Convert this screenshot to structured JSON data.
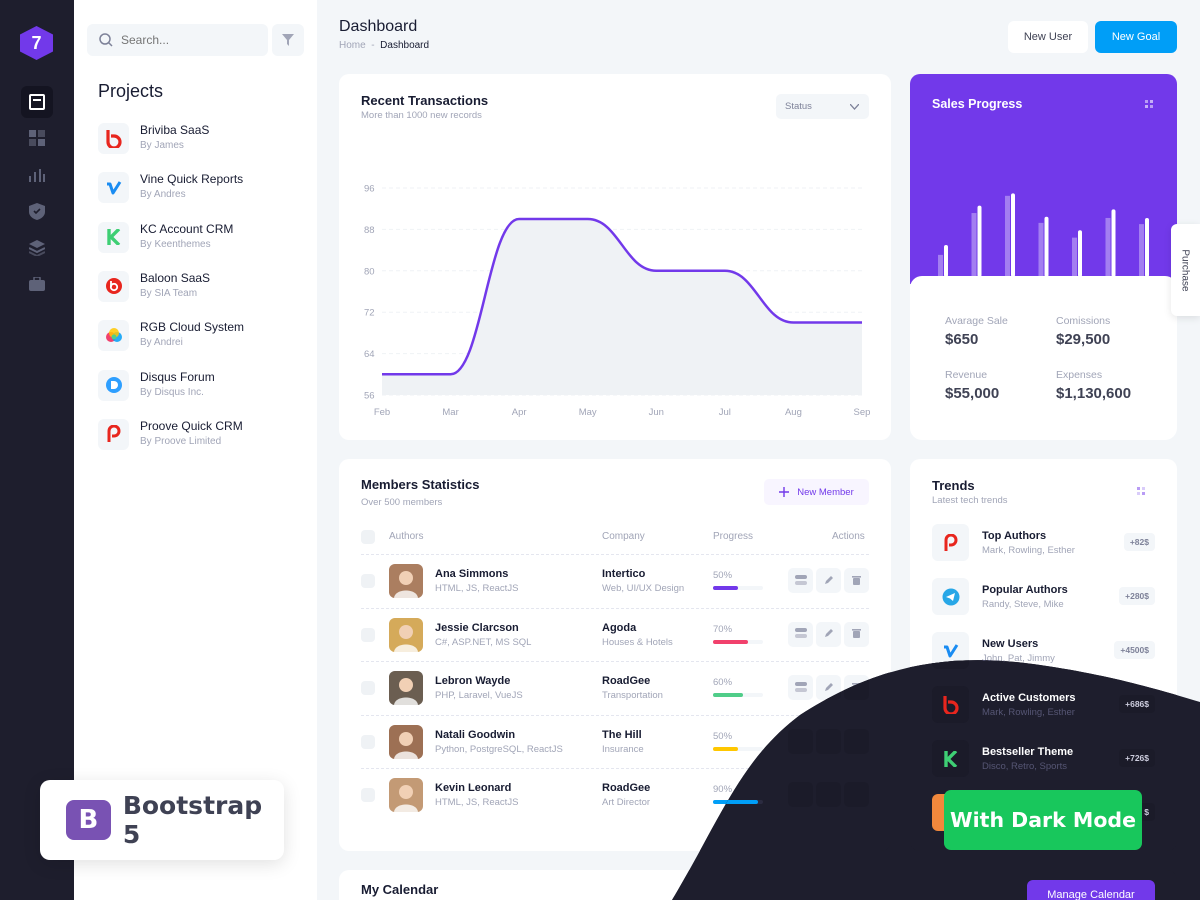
{
  "brand": {
    "logo_text": "7"
  },
  "sidebar": {
    "search_placeholder": "Search...",
    "projects_title": "Projects",
    "projects": [
      {
        "name": "Briviba SaaS",
        "by": "By James",
        "icon": "b-logo-icon",
        "color": "#e8261e"
      },
      {
        "name": "Vine Quick Reports",
        "by": "By Andres",
        "icon": "vimeo-icon",
        "color": "#1a8cf2"
      },
      {
        "name": "KC Account CRM",
        "by": "By Keenthemes",
        "icon": "k-logo-icon",
        "color": "#3ecf74"
      },
      {
        "name": "Baloon SaaS",
        "by": "By SIA Team",
        "icon": "beats-icon",
        "color": "#e8261e"
      },
      {
        "name": "RGB Cloud System",
        "by": "By Andrei",
        "icon": "rgb-cloud-icon",
        "color": "#f7b500"
      },
      {
        "name": "Disqus Forum",
        "by": "By Disqus Inc.",
        "icon": "disqus-icon",
        "color": "#2e9fff"
      },
      {
        "name": "Proove Quick CRM",
        "by": "By Proove Limited",
        "icon": "p-logo-icon",
        "color": "#e8261e"
      }
    ]
  },
  "bootstrap_badge": {
    "logo": "B",
    "text": "Bootstrap 5"
  },
  "header": {
    "title": "Dashboard",
    "breadcrumb_home": "Home",
    "breadcrumb_sep": "-",
    "breadcrumb_current": "Dashboard",
    "new_user": "New User",
    "new_goal": "New Goal"
  },
  "transactions": {
    "title": "Recent Transactions",
    "subtitle": "More than 1000 new records",
    "status_label": "Status"
  },
  "chart_data": {
    "type": "area",
    "categories": [
      "Feb",
      "Mar",
      "Apr",
      "May",
      "Jun",
      "Jul",
      "Aug",
      "Sep"
    ],
    "values": [
      60,
      60,
      90,
      90,
      80,
      80,
      70,
      70
    ],
    "y_ticks": [
      "56",
      "64",
      "72",
      "80",
      "88",
      "96"
    ],
    "ylim": [
      56,
      96
    ],
    "line_color": "#7239ea",
    "fill_color": "#eff2f5",
    "grid": true
  },
  "sales": {
    "title": "Sales Progress",
    "bars": [
      {
        "a": 0.18,
        "b": 0.26
      },
      {
        "a": 0.52,
        "b": 0.58
      },
      {
        "a": 0.66,
        "b": 0.68
      },
      {
        "a": 0.44,
        "b": 0.49
      },
      {
        "a": 0.32,
        "b": 0.38
      },
      {
        "a": 0.48,
        "b": 0.55
      },
      {
        "a": 0.43,
        "b": 0.48
      }
    ],
    "stats": [
      {
        "label": "Avarage Sale",
        "value": "$650"
      },
      {
        "label": "Comissions",
        "value": "$29,500"
      },
      {
        "label": "Revenue",
        "value": "$55,000"
      },
      {
        "label": "Expenses",
        "value": "$1,130,600"
      }
    ],
    "purchase_tab": "Purchase"
  },
  "members": {
    "title": "Members Statistics",
    "subtitle": "Over 500 members",
    "new_member": "New Member",
    "columns": [
      "Authors",
      "Company",
      "Progress",
      "Actions"
    ],
    "rows": [
      {
        "name": "Ana Simmons",
        "skills": "HTML, JS, ReactJS",
        "company": "Intertico",
        "company_sub": "Web, UI/UX Design",
        "progress": "50%",
        "fill": 0.5,
        "color": "#7239ea"
      },
      {
        "name": "Jessie Clarcson",
        "skills": "C#, ASP.NET, MS SQL",
        "company": "Agoda",
        "company_sub": "Houses & Hotels",
        "progress": "70%",
        "fill": 0.7,
        "color": "#f1416c"
      },
      {
        "name": "Lebron Wayde",
        "skills": "PHP, Laravel, VueJS",
        "company": "RoadGee",
        "company_sub": "Transportation",
        "progress": "60%",
        "fill": 0.6,
        "color": "#50cd89"
      },
      {
        "name": "Natali Goodwin",
        "skills": "Python, PostgreSQL, ReactJS",
        "company": "The Hill",
        "company_sub": "Insurance",
        "progress": "50%",
        "fill": 0.5,
        "color": "#ffc700"
      },
      {
        "name": "Kevin Leonard",
        "skills": "HTML, JS, ReactJS",
        "company": "RoadGee",
        "company_sub": "Art Director",
        "progress": "90%",
        "fill": 0.9,
        "color": "#009ef7"
      }
    ]
  },
  "trends": {
    "title": "Trends",
    "subtitle": "Latest tech trends",
    "items": [
      {
        "name": "Top Authors",
        "sub": "Mark, Rowling, Esther",
        "badge": "+82$",
        "icon": "p-logo-icon"
      },
      {
        "name": "Popular Authors",
        "sub": "Randy, Steve, Mike",
        "badge": "+280$",
        "icon": "telegram-icon"
      },
      {
        "name": "New Users",
        "sub": "John, Pat, Jimmy",
        "badge": "+4500$",
        "icon": "vimeo-icon"
      },
      {
        "name": "Active Customers",
        "sub": "Mark, Rowling, Esther",
        "badge": "+686$",
        "icon": "b-logo-icon"
      },
      {
        "name": "Bestseller Theme",
        "sub": "Disco, Retro, Sports",
        "badge": "+726$",
        "icon": "k-logo-icon"
      },
      {
        "badge": "$"
      }
    ]
  },
  "dark_mode_badge": "With Dark Mode",
  "calendar": {
    "title": "My Calendar",
    "manage": "Manage Calendar"
  }
}
